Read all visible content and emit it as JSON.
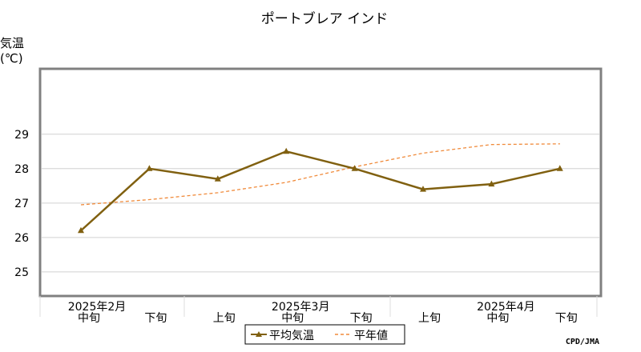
{
  "chart_data": {
    "type": "line",
    "title": "ポートブレア インド",
    "ylabel_line1": "気温",
    "ylabel_line2": "(℃)",
    "ylim": [
      24.3,
      30.9
    ],
    "yticks": [
      "25",
      "26",
      "27",
      "28",
      "29"
    ],
    "grid": true,
    "categories": [
      {
        "dekad": "中旬",
        "month": "2025年2月"
      },
      {
        "dekad": "下旬",
        "month": ""
      },
      {
        "dekad": "上旬",
        "month": ""
      },
      {
        "dekad": "中旬",
        "month": "2025年3月"
      },
      {
        "dekad": "下旬",
        "month": ""
      },
      {
        "dekad": "上旬",
        "month": ""
      },
      {
        "dekad": "中旬",
        "month": "2025年4月"
      },
      {
        "dekad": "下旬",
        "month": ""
      }
    ],
    "series": [
      {
        "name": "平均気温",
        "color": "#806010",
        "style": "solid",
        "marker": "triangle",
        "values": [
          26.2,
          28.0,
          27.7,
          28.5,
          28.0,
          27.4,
          27.55,
          28.0
        ]
      },
      {
        "name": "平年値",
        "color": "#f08a3a",
        "style": "dashed",
        "marker": "none",
        "values": [
          26.95,
          27.1,
          27.3,
          27.6,
          28.05,
          28.45,
          28.7,
          28.72
        ]
      }
    ],
    "legend_position": "bottom-center",
    "credit": "CPD/JMA"
  }
}
